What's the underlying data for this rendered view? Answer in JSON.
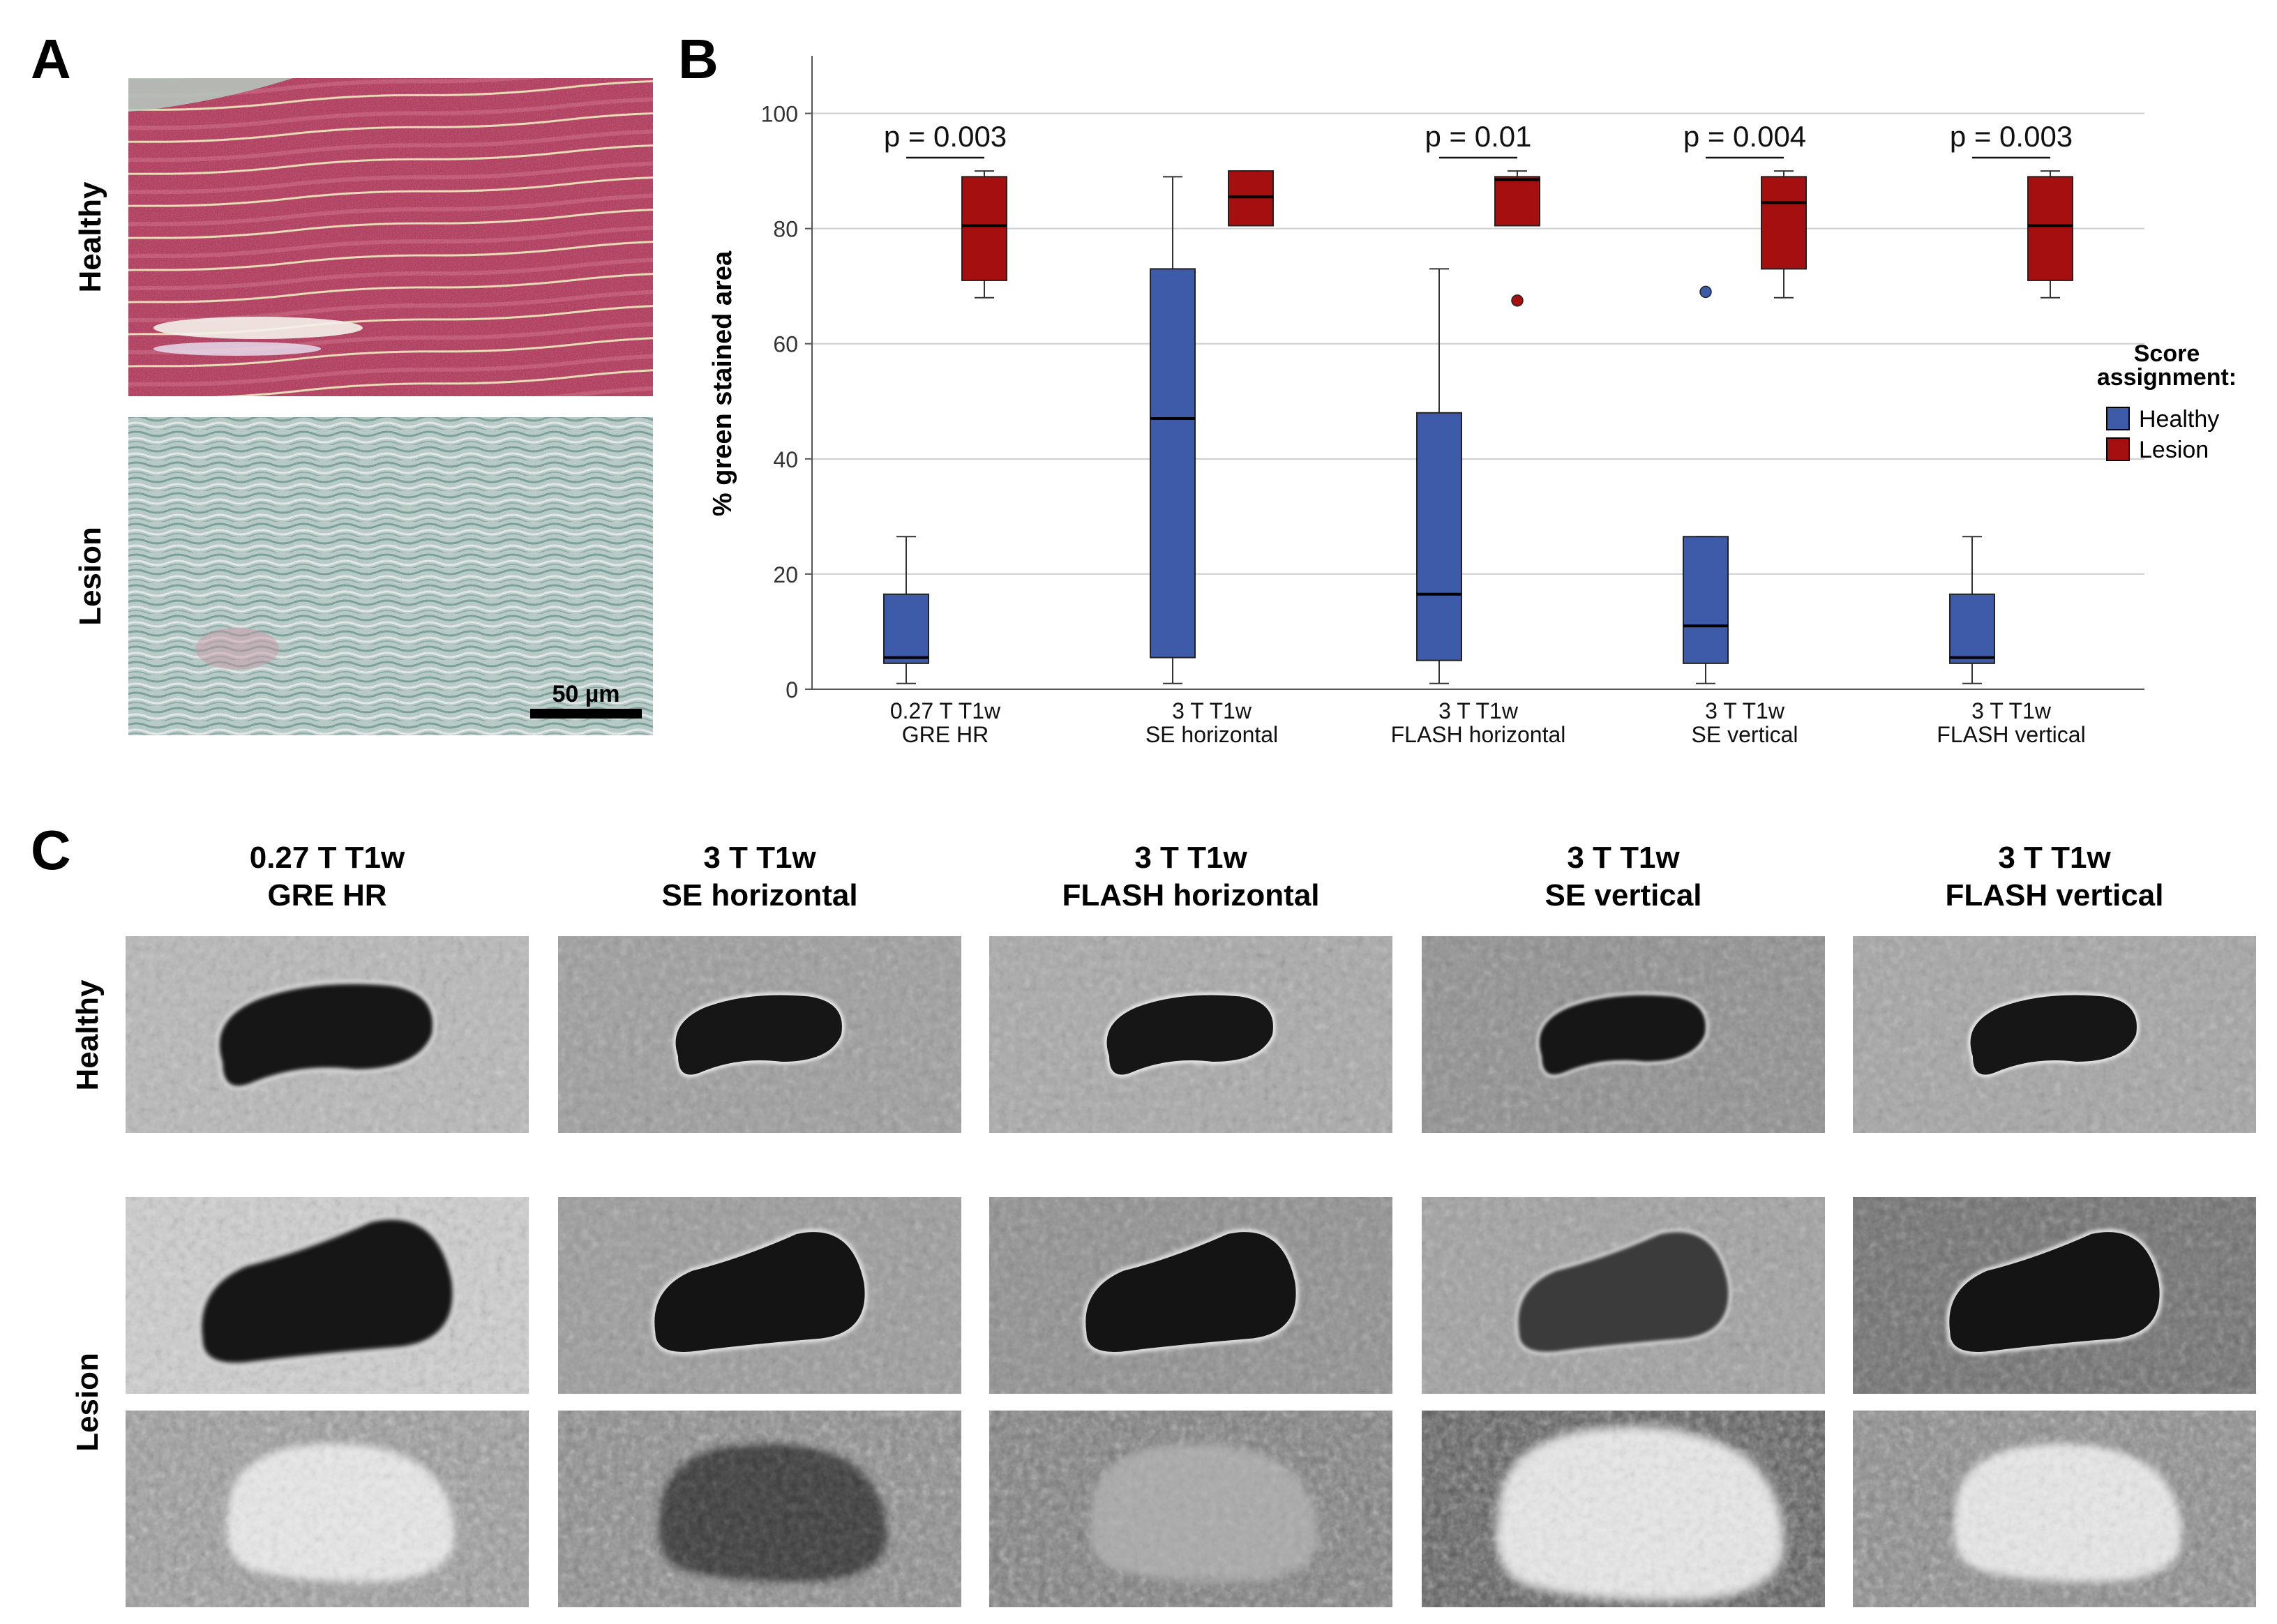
{
  "panels": {
    "a": "A",
    "b": "B",
    "c": "C"
  },
  "histology": {
    "row_labels": [
      "Healthy",
      "Lesion"
    ],
    "scale_bar": "50 µm"
  },
  "chart_data": {
    "type": "box",
    "title": "",
    "xlabel": "",
    "ylabel": "% green stained area",
    "ylim": [
      0,
      110
    ],
    "yticks": [
      0,
      20,
      40,
      60,
      80,
      100
    ],
    "grid": true,
    "legend_title": [
      "Score",
      "assignment:"
    ],
    "legend_position": "right",
    "categories": [
      [
        "0.27 T T1w",
        "GRE HR"
      ],
      [
        "3 T T1w",
        "SE horizontal"
      ],
      [
        "3 T T1w",
        "FLASH horizontal"
      ],
      [
        "3 T T1w",
        "SE vertical"
      ],
      [
        "3 T T1w",
        "FLASH vertical"
      ]
    ],
    "series": [
      {
        "name": "Healthy",
        "color": "#3d5ba9",
        "boxes": [
          {
            "min": 1,
            "q1": 4.5,
            "median": 5.5,
            "q3": 16.5,
            "max": 26.5,
            "outliers": []
          },
          {
            "min": 1,
            "q1": 5.5,
            "median": 47,
            "q3": 73,
            "max": 89,
            "outliers": []
          },
          {
            "min": 1,
            "q1": 5,
            "median": 16.5,
            "q3": 48,
            "max": 73,
            "outliers": []
          },
          {
            "min": 1,
            "q1": 4.5,
            "median": 11,
            "q3": 26.5,
            "max": 26.5,
            "outliers": [
              69
            ]
          },
          {
            "min": 1,
            "q1": 4.5,
            "median": 5.5,
            "q3": 16.5,
            "max": 26.5,
            "outliers": []
          }
        ]
      },
      {
        "name": "Lesion",
        "color": "#a50f0f",
        "boxes": [
          {
            "min": 68,
            "q1": 71,
            "median": 80.5,
            "q3": 89,
            "max": 90,
            "outliers": []
          },
          {
            "min": 80.5,
            "q1": 80.5,
            "median": 85.5,
            "q3": 90,
            "max": 90,
            "outliers": []
          },
          {
            "min": 80.5,
            "q1": 80.5,
            "median": 88.5,
            "q3": 89,
            "max": 90,
            "outliers": [
              67.5
            ]
          },
          {
            "min": 68,
            "q1": 73,
            "median": 84.5,
            "q3": 89,
            "max": 90,
            "outliers": []
          },
          {
            "min": 68,
            "q1": 71,
            "median": 80.5,
            "q3": 89,
            "max": 90,
            "outliers": []
          }
        ]
      }
    ],
    "annotations": [
      {
        "category_index": 0,
        "text": "p = 0.003"
      },
      {
        "category_index": 2,
        "text": "p = 0.01"
      },
      {
        "category_index": 3,
        "text": "p = 0.004"
      },
      {
        "category_index": 4,
        "text": "p = 0.003"
      }
    ]
  },
  "mri": {
    "column_headers": [
      [
        "0.27 T T1w",
        "GRE HR"
      ],
      [
        "3 T T1w",
        "SE horizontal"
      ],
      [
        "3 T T1w",
        "FLASH horizontal"
      ],
      [
        "3 T T1w",
        "SE vertical"
      ],
      [
        "3 T T1w",
        "FLASH vertical"
      ]
    ],
    "row_labels": [
      "Healthy",
      "Lesion"
    ]
  }
}
